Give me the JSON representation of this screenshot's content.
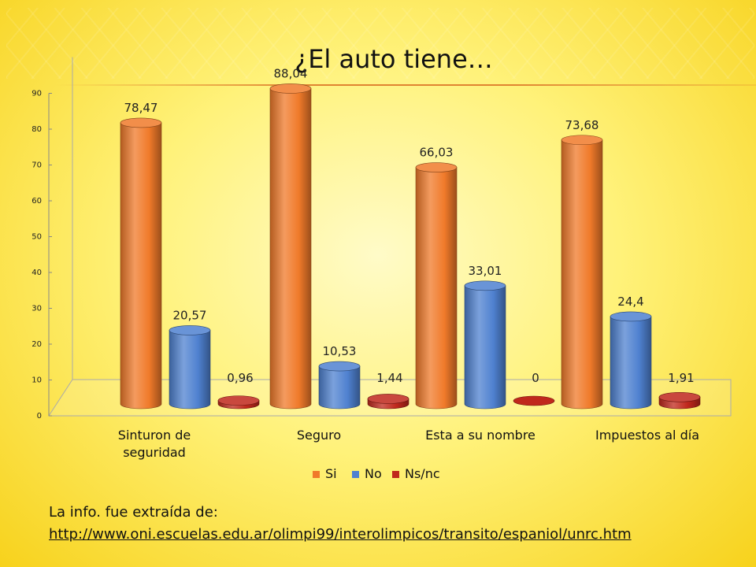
{
  "title": "¿El auto tiene…",
  "source": {
    "label": "La info. fue extraída de:",
    "url": "http://www.oni.escuelas.edu.ar/olimpi99/interolimpicos/transito/espaniol/unrc.htm"
  },
  "chart_data": {
    "type": "bar",
    "title": "¿El auto tiene…",
    "categories": [
      [
        "Sinturon de",
        "seguridad"
      ],
      [
        "Seguro"
      ],
      [
        "Esta a su nombre"
      ],
      [
        "Impuestos al día"
      ]
    ],
    "series": [
      {
        "name": "Si",
        "color": "#f07a2a",
        "values": [
          78.47,
          88.04,
          66.03,
          73.68
        ],
        "labels": [
          "78,47",
          "88,04",
          "66,03",
          "73,68"
        ]
      },
      {
        "name": "No",
        "color": "#4f81d0",
        "values": [
          20.57,
          10.53,
          33.01,
          24.4
        ],
        "labels": [
          "20,57",
          "10,53",
          "33,01",
          "24,4"
        ]
      },
      {
        "name": "Ns/nc",
        "color": "#c0281c",
        "values": [
          0.96,
          1.44,
          0,
          1.91
        ],
        "labels": [
          "0,96",
          "1,44",
          "0",
          "1,91"
        ]
      }
    ],
    "ylim": [
      0,
      90
    ],
    "yticks": [
      0,
      10,
      20,
      30,
      40,
      50,
      60,
      70,
      80,
      90
    ],
    "legend": "bottom",
    "grid": false
  }
}
